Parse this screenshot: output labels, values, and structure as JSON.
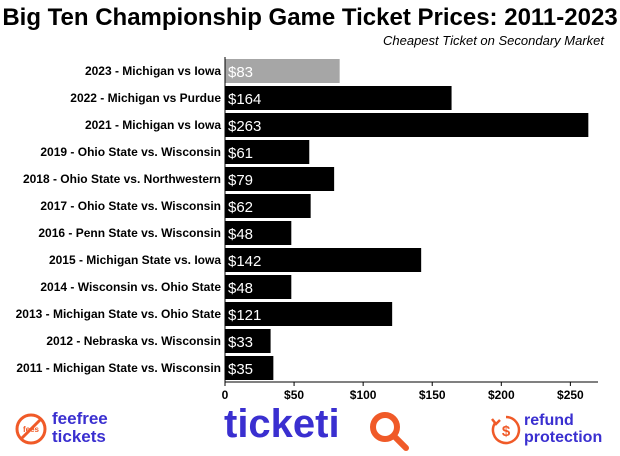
{
  "chart_data": {
    "type": "bar",
    "orientation": "horizontal",
    "title": "Big Ten Championship Game Ticket Prices: 2011-2023",
    "subtitle": "Cheapest Ticket on Secondary Market",
    "categories": [
      "2023 - Michigan vs Iowa",
      "2022 - Michigan vs Purdue",
      "2021 - Michigan vs Iowa",
      "2019 - Ohio State vs. Wisconsin",
      "2018 - Ohio State vs. Northwestern",
      "2017 - Ohio State vs. Wisconsin",
      "2016 - Penn State vs. Wisconsin",
      "2015 - Michigan State vs. Iowa",
      "2014 - Wisconsin vs. Ohio State",
      "2013 - Michigan State vs. Ohio State",
      "2012 - Nebraska vs. Wisconsin",
      "2011 - Michigan State vs. Wisconsin"
    ],
    "values": [
      83,
      164,
      263,
      61,
      79,
      62,
      48,
      142,
      48,
      121,
      33,
      35
    ],
    "data_labels": [
      "$83",
      "$164",
      "$263",
      "$61",
      "$79",
      "$62",
      "$48",
      "$142",
      "$48",
      "$121",
      "$33",
      "$35"
    ],
    "xlim": [
      0,
      270
    ],
    "x_ticks": [
      0,
      50,
      100,
      150,
      200,
      250
    ],
    "x_tick_labels": [
      "0",
      "$50",
      "$100",
      "$150",
      "$200",
      "$250"
    ],
    "xlabel": "",
    "ylabel": "",
    "grid": false,
    "colors": {
      "highlight": "#a6a6a6",
      "default": "#000000",
      "label_text": "#ffffff"
    }
  },
  "footer": {
    "feefree_line1": "feefree",
    "feefree_line2": "tickets",
    "feefree_stamp": "fees",
    "ticketiq_text": "ticketi",
    "refund_line1": "refund",
    "refund_line2": "protection",
    "refund_symbol": "$",
    "brand_color": "#3a2fd0",
    "accent_color": "#f05a28"
  }
}
